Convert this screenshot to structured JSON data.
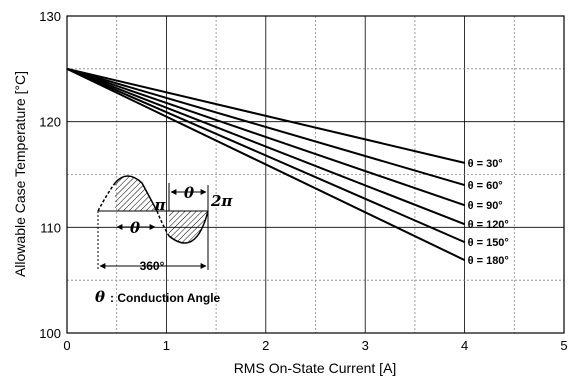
{
  "chart_data": {
    "type": "line",
    "xlabel": "RMS On-State Current [A]",
    "ylabel": "Allowable Case Temperature [°C]",
    "xlim": [
      0,
      5
    ],
    "ylim": [
      100,
      130
    ],
    "xticks": [
      "0",
      "1",
      "2",
      "3",
      "4",
      "5"
    ],
    "yticks": [
      "100",
      "110",
      "120",
      "130"
    ],
    "grid": true,
    "series": [
      {
        "name": "θ = 30°",
        "x": [
          0,
          4
        ],
        "y": [
          125,
          116.1
        ]
      },
      {
        "name": "θ = 60°",
        "x": [
          0,
          4
        ],
        "y": [
          125,
          114.0
        ]
      },
      {
        "name": "θ = 90°",
        "x": [
          0,
          4
        ],
        "y": [
          125,
          112.1
        ]
      },
      {
        "name": "θ = 120°",
        "x": [
          0,
          4
        ],
        "y": [
          125,
          110.3
        ]
      },
      {
        "name": "θ = 150°",
        "x": [
          0,
          4
        ],
        "y": [
          125,
          108.6
        ]
      },
      {
        "name": "θ = 180°",
        "x": [
          0,
          4
        ],
        "y": [
          125,
          106.9
        ]
      }
    ]
  },
  "inset": {
    "theta_symbol": "θ",
    "pi_label": "π",
    "two_pi_label": "2π",
    "angle_label": "360°",
    "note_symbol": "θ",
    "note_text": ": Conduction Angle"
  }
}
